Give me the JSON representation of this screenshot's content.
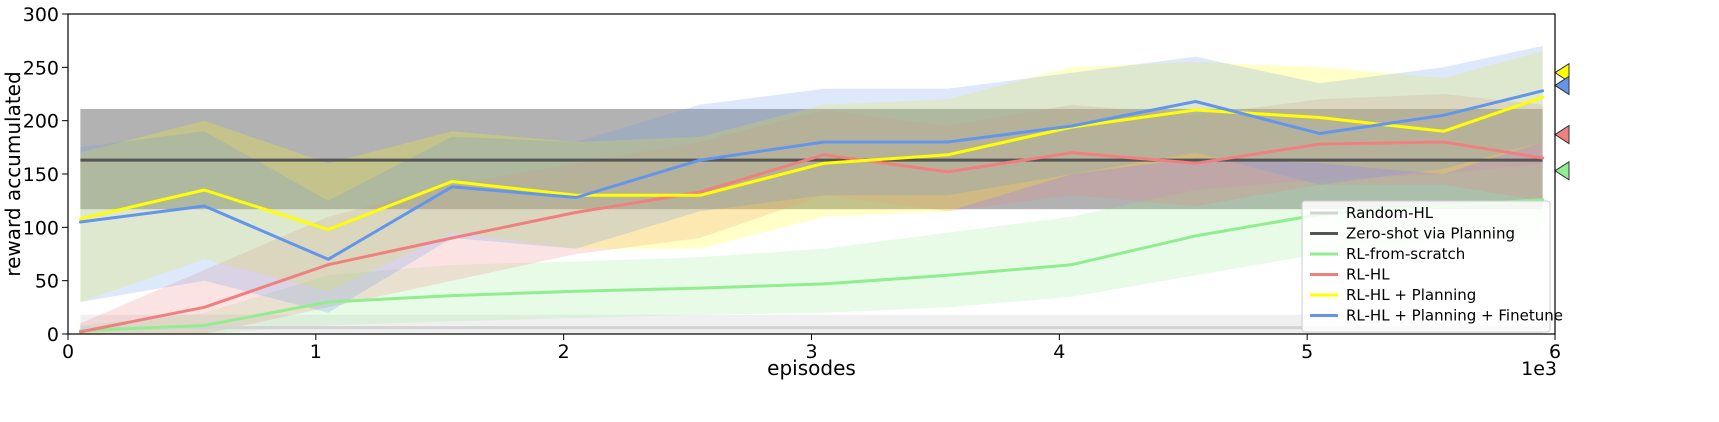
{
  "chart_data": {
    "type": "line",
    "xlabel": "episodes",
    "ylabel": "reward accumulated",
    "x_multiplier_label": "1e3",
    "xlim": [
      0,
      6
    ],
    "ylim": [
      0,
      300
    ],
    "xticks": [
      0,
      1,
      2,
      3,
      4,
      5,
      6
    ],
    "xtick_labels": [
      "0",
      "1",
      "2",
      "3",
      "4",
      "5",
      "6"
    ],
    "yticks": [
      0,
      50,
      100,
      150,
      200,
      250,
      300
    ],
    "ytick_labels": [
      "0",
      "50",
      "100",
      "150",
      "200",
      "250",
      "300"
    ],
    "legend_position": "lower right",
    "x": [
      0.05,
      0.55,
      1.05,
      1.55,
      2.05,
      2.55,
      3.05,
      3.55,
      4.05,
      4.55,
      5.05,
      5.55,
      5.95
    ],
    "series": [
      {
        "name": "Random-HL",
        "color": "#d3d3d3",
        "kind": "constant",
        "mean": 6,
        "band": [
          0,
          18
        ]
      },
      {
        "name": "Zero-shot via Planning",
        "color": "#555555",
        "kind": "constant",
        "mean": 163,
        "band": [
          117,
          211
        ]
      },
      {
        "name": "RL-from-scratch",
        "color": "#90ee90",
        "kind": "line",
        "y": [
          3,
          8,
          30,
          36,
          40,
          43,
          47,
          55,
          65,
          92,
          112,
          120,
          126
        ],
        "band_lo": [
          0,
          0,
          8,
          12,
          15,
          18,
          20,
          25,
          35,
          55,
          75,
          85,
          90
        ],
        "band_hi": [
          8,
          20,
          55,
          65,
          68,
          72,
          80,
          95,
          110,
          135,
          145,
          150,
          160
        ],
        "marker_value": 153
      },
      {
        "name": "RL-HL",
        "color": "#f08080",
        "kind": "line",
        "y": [
          2,
          25,
          65,
          90,
          114,
          133,
          168,
          152,
          170,
          160,
          178,
          180,
          165
        ],
        "band_lo": [
          0,
          0,
          25,
          50,
          75,
          90,
          130,
          115,
          130,
          120,
          140,
          140,
          125
        ],
        "band_hi": [
          10,
          60,
          110,
          140,
          160,
          180,
          210,
          195,
          215,
          205,
          220,
          225,
          215
        ],
        "marker_value": 187
      },
      {
        "name": "RL-HL + Planning",
        "color": "#ffff00",
        "kind": "line",
        "y": [
          108,
          135,
          98,
          143,
          130,
          130,
          160,
          168,
          194,
          210,
          203,
          190,
          222
        ],
        "band_lo": [
          30,
          70,
          40,
          95,
          80,
          80,
          110,
          115,
          150,
          165,
          160,
          150,
          180
        ],
        "band_hi": [
          170,
          200,
          160,
          190,
          180,
          185,
          215,
          220,
          250,
          255,
          250,
          240,
          265
        ],
        "marker_value": 245
      },
      {
        "name": "RL-HL + Planning + Finetune",
        "color": "#6495ed",
        "kind": "line",
        "y": [
          105,
          120,
          70,
          138,
          128,
          163,
          180,
          180,
          195,
          218,
          188,
          205,
          228
        ],
        "band_lo": [
          30,
          50,
          20,
          90,
          80,
          115,
          130,
          130,
          150,
          170,
          140,
          155,
          180
        ],
        "band_hi": [
          175,
          190,
          125,
          185,
          180,
          215,
          230,
          230,
          245,
          260,
          235,
          250,
          270
        ],
        "marker_value": 233
      }
    ]
  }
}
